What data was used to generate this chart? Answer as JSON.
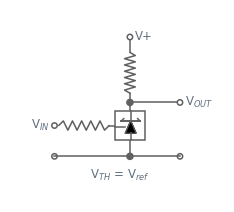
{
  "bg_color": "#ffffff",
  "line_color": "#606060",
  "text_color": "#607080",
  "vplus_label": "V+",
  "vout_label": "V$_{OUT}$",
  "vin_label": "V$_{IN}$",
  "vth_label": "V$_{TH}$ = V$_{ref}$",
  "font_size": 8.5,
  "lw": 1.1
}
